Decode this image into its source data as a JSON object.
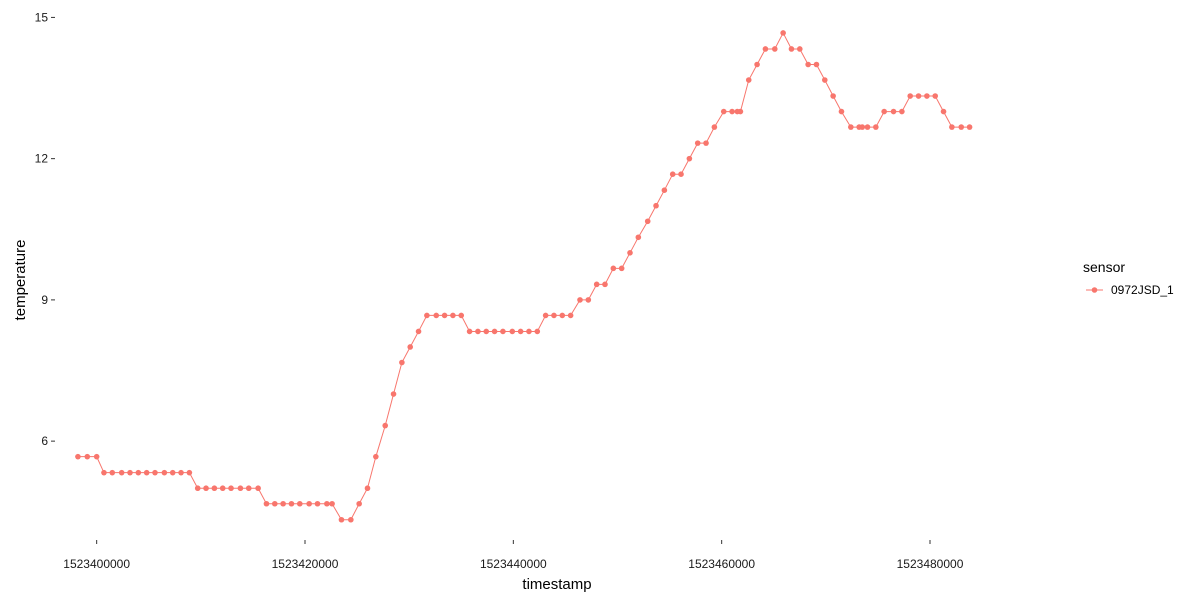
{
  "chart_data": {
    "type": "line",
    "xlabel": "timestamp",
    "ylabel": "temperature",
    "xlim": [
      1523396000,
      1523492000
    ],
    "ylim": [
      3.9,
      15.2
    ],
    "x_ticks": [
      1523400000,
      1523420000,
      1523440000,
      1523460000,
      1523480000
    ],
    "x_tick_labels": [
      "1523400000",
      "1523420000",
      "1523440000",
      "1523460000",
      "1523480000"
    ],
    "y_ticks": [
      6,
      9,
      12,
      15
    ],
    "y_tick_labels": [
      "6",
      "9",
      "12",
      "15"
    ],
    "grid": false,
    "legend": {
      "title": "sensor",
      "position": "right"
    },
    "series": [
      {
        "name": "0972JSD_1",
        "color": "#F8766D",
        "x": [
          1523398200,
          1523399100,
          1523400000,
          1523400700,
          1523401500,
          1523402400,
          1523403200,
          1523404000,
          1523404800,
          1523405600,
          1523406500,
          1523407300,
          1523408100,
          1523408900,
          1523409700,
          1523410500,
          1523411300,
          1523412100,
          1523412900,
          1523413800,
          1523414600,
          1523415500,
          1523416300,
          1523417100,
          1523417900,
          1523418700,
          1523419500,
          1523420400,
          1523421200,
          1523422100,
          1523422600,
          1523423500,
          1523424400,
          1523425200,
          1523426000,
          1523426800,
          1523427700,
          1523428500,
          1523429300,
          1523430100,
          1523430900,
          1523431700,
          1523432600,
          1523433400,
          1523434200,
          1523435000,
          1523435800,
          1523436600,
          1523437400,
          1523438200,
          1523439000,
          1523439900,
          1523440700,
          1523441500,
          1523442300,
          1523443100,
          1523443900,
          1523444700,
          1523445500,
          1523446400,
          1523447200,
          1523448000,
          1523448800,
          1523449600,
          1523450400,
          1523451200,
          1523452000,
          1523452900,
          1523453700,
          1523454500,
          1523455300,
          1523456100,
          1523456900,
          1523457700,
          1523458500,
          1523459300,
          1523460200,
          1523461000,
          1523461500,
          1523461800,
          1523462600,
          1523463400,
          1523464200,
          1523465100,
          1523465900,
          1523466700,
          1523467500,
          1523468300,
          1523469100,
          1523469900,
          1523470700,
          1523471500,
          1523472400,
          1523473200,
          1523473500,
          1523474000,
          1523474800,
          1523475600,
          1523476500,
          1523477300,
          1523478100,
          1523478900,
          1523479700,
          1523480500,
          1523481300,
          1523482100,
          1523483000,
          1523483800
        ],
        "y": [
          5.67,
          5.67,
          5.67,
          5.33,
          5.33,
          5.33,
          5.33,
          5.33,
          5.33,
          5.33,
          5.33,
          5.33,
          5.33,
          5.33,
          5.0,
          5.0,
          5.0,
          5.0,
          5.0,
          5.0,
          5.0,
          5.0,
          4.67,
          4.67,
          4.67,
          4.67,
          4.67,
          4.67,
          4.67,
          4.67,
          4.67,
          4.33,
          4.33,
          4.67,
          5.0,
          5.67,
          6.33,
          7.0,
          7.67,
          8.0,
          8.33,
          8.67,
          8.67,
          8.67,
          8.67,
          8.67,
          8.33,
          8.33,
          8.33,
          8.33,
          8.33,
          8.33,
          8.33,
          8.33,
          8.33,
          8.67,
          8.67,
          8.67,
          8.67,
          9.0,
          9.0,
          9.33,
          9.33,
          9.67,
          9.67,
          10.0,
          10.33,
          10.67,
          11.0,
          11.33,
          11.67,
          11.67,
          12.0,
          12.33,
          12.33,
          12.67,
          13.0,
          13.0,
          13.0,
          13.0,
          13.67,
          14.0,
          14.33,
          14.33,
          14.67,
          14.33,
          14.33,
          14.0,
          14.0,
          13.67,
          13.33,
          13.0,
          12.67,
          12.67,
          12.67,
          12.67,
          12.67,
          13.0,
          13.0,
          13.0,
          13.33,
          13.33,
          13.33,
          13.33,
          13.0,
          12.67,
          12.67,
          12.67
        ]
      }
    ]
  }
}
